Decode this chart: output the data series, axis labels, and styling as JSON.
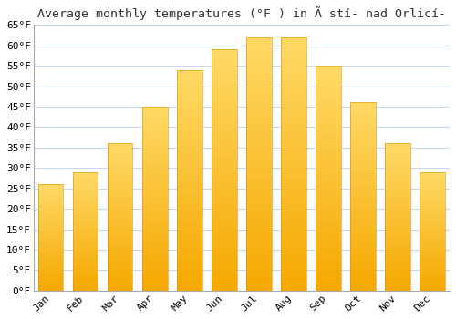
{
  "title": "Average monthly temperatures (°F ) in Ã stí- nad Orlicí-",
  "months": [
    "Jan",
    "Feb",
    "Mar",
    "Apr",
    "May",
    "Jun",
    "Jul",
    "Aug",
    "Sep",
    "Oct",
    "Nov",
    "Dec"
  ],
  "values": [
    26,
    29,
    36,
    45,
    54,
    59,
    62,
    62,
    55,
    46,
    36,
    29
  ],
  "ylim": [
    0,
    65
  ],
  "yticks": [
    0,
    5,
    10,
    15,
    20,
    25,
    30,
    35,
    40,
    45,
    50,
    55,
    60,
    65
  ],
  "bar_color_bottom": "#f5a800",
  "bar_color_top": "#ffd966",
  "bar_edge_color": "#d4930a",
  "background_color": "#ffffff",
  "grid_color": "#c8d8e8",
  "title_fontsize": 9.5,
  "tick_fontsize": 8,
  "figsize": [
    5.0,
    3.5
  ],
  "dpi": 100
}
